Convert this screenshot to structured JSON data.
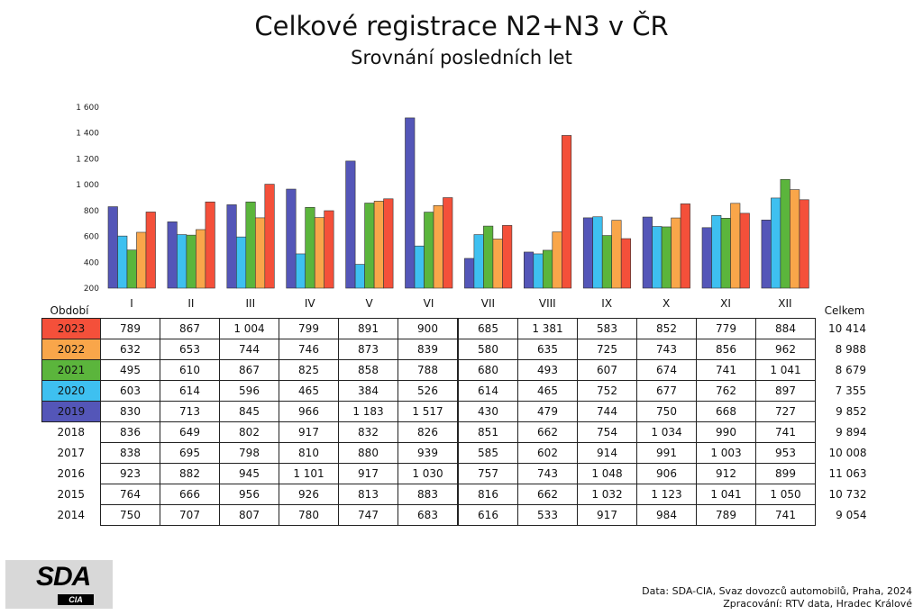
{
  "title": "Celkové registrace N2+N3 v ČR",
  "subtitle": "Srovnání posledních let",
  "table": {
    "period_label": "Období",
    "total_label": "Celkem",
    "months": [
      "I",
      "II",
      "III",
      "IV",
      "V",
      "VI",
      "VII",
      "VIII",
      "IX",
      "X",
      "XI",
      "XII"
    ],
    "rows": [
      {
        "year": "2023",
        "values": [
          "789",
          "867",
          "1 004",
          "799",
          "891",
          "900",
          "685",
          "1 381",
          "583",
          "852",
          "779",
          "884"
        ],
        "total": "10 414",
        "color": "#f4503a"
      },
      {
        "year": "2022",
        "values": [
          "632",
          "653",
          "744",
          "746",
          "873",
          "839",
          "580",
          "635",
          "725",
          "743",
          "856",
          "962"
        ],
        "total": "8 988",
        "color": "#f9a64a"
      },
      {
        "year": "2021",
        "values": [
          "495",
          "610",
          "867",
          "825",
          "858",
          "788",
          "680",
          "493",
          "607",
          "674",
          "741",
          "1 041"
        ],
        "total": "8 679",
        "color": "#5bb53c"
      },
      {
        "year": "2020",
        "values": [
          "603",
          "614",
          "596",
          "465",
          "384",
          "526",
          "614",
          "465",
          "752",
          "677",
          "762",
          "897"
        ],
        "total": "7 355",
        "color": "#3ec0f0"
      },
      {
        "year": "2019",
        "values": [
          "830",
          "713",
          "845",
          "966",
          "1 183",
          "1 517",
          "430",
          "479",
          "744",
          "750",
          "668",
          "727"
        ],
        "total": "9 852",
        "color": "#5456b8"
      },
      {
        "year": "2018",
        "values": [
          "836",
          "649",
          "802",
          "917",
          "832",
          "826",
          "851",
          "662",
          "754",
          "1 034",
          "990",
          "741"
        ],
        "total": "9 894"
      },
      {
        "year": "2017",
        "values": [
          "838",
          "695",
          "798",
          "810",
          "880",
          "939",
          "585",
          "602",
          "914",
          "991",
          "1 003",
          "953"
        ],
        "total": "10 008"
      },
      {
        "year": "2016",
        "values": [
          "923",
          "882",
          "945",
          "1 101",
          "917",
          "1 030",
          "757",
          "743",
          "1 048",
          "906",
          "912",
          "899"
        ],
        "total": "11 063"
      },
      {
        "year": "2015",
        "values": [
          "764",
          "666",
          "956",
          "926",
          "813",
          "883",
          "816",
          "662",
          "1 032",
          "1 123",
          "1 041",
          "1 050"
        ],
        "total": "10 732"
      },
      {
        "year": "2014",
        "values": [
          "750",
          "707",
          "807",
          "780",
          "747",
          "683",
          "616",
          "533",
          "917",
          "984",
          "789",
          "741"
        ],
        "total": "9 054"
      }
    ]
  },
  "chart_data": {
    "type": "bar",
    "title": "Celkové registrace N2+N3 v ČR",
    "subtitle": "Srovnání posledních let",
    "categories": [
      "I",
      "II",
      "III",
      "IV",
      "V",
      "VI",
      "VII",
      "VIII",
      "IX",
      "X",
      "XI",
      "XII"
    ],
    "ylim": [
      200,
      1600
    ],
    "yticks": [
      200,
      400,
      600,
      800,
      1000,
      1200,
      1400,
      1600
    ],
    "ytick_labels": [
      "200",
      "400",
      "600",
      "800",
      "1 000",
      "1 200",
      "1 400",
      "1 600"
    ],
    "series": [
      {
        "name": "2019",
        "color": "#5456b8",
        "values": [
          830,
          713,
          845,
          966,
          1183,
          1517,
          430,
          479,
          744,
          750,
          668,
          727
        ]
      },
      {
        "name": "2020",
        "color": "#3ec0f0",
        "values": [
          603,
          614,
          596,
          465,
          384,
          526,
          614,
          465,
          752,
          677,
          762,
          897
        ]
      },
      {
        "name": "2021",
        "color": "#5bb53c",
        "values": [
          495,
          610,
          867,
          825,
          858,
          788,
          680,
          493,
          607,
          674,
          741,
          1041
        ]
      },
      {
        "name": "2022",
        "color": "#f9a64a",
        "values": [
          632,
          653,
          744,
          746,
          873,
          839,
          580,
          635,
          725,
          743,
          856,
          962
        ]
      },
      {
        "name": "2023",
        "color": "#f4503a",
        "values": [
          789,
          867,
          1004,
          799,
          891,
          900,
          685,
          1381,
          583,
          852,
          779,
          884
        ]
      }
    ]
  },
  "logo": {
    "main": "SDA",
    "sub": "CIA"
  },
  "footer": {
    "line1": "Data: SDA-CIA, Svaz dovozců automobilů, Praha, 2024",
    "line2": "Zpracování: RTV data, Hradec Králové"
  }
}
